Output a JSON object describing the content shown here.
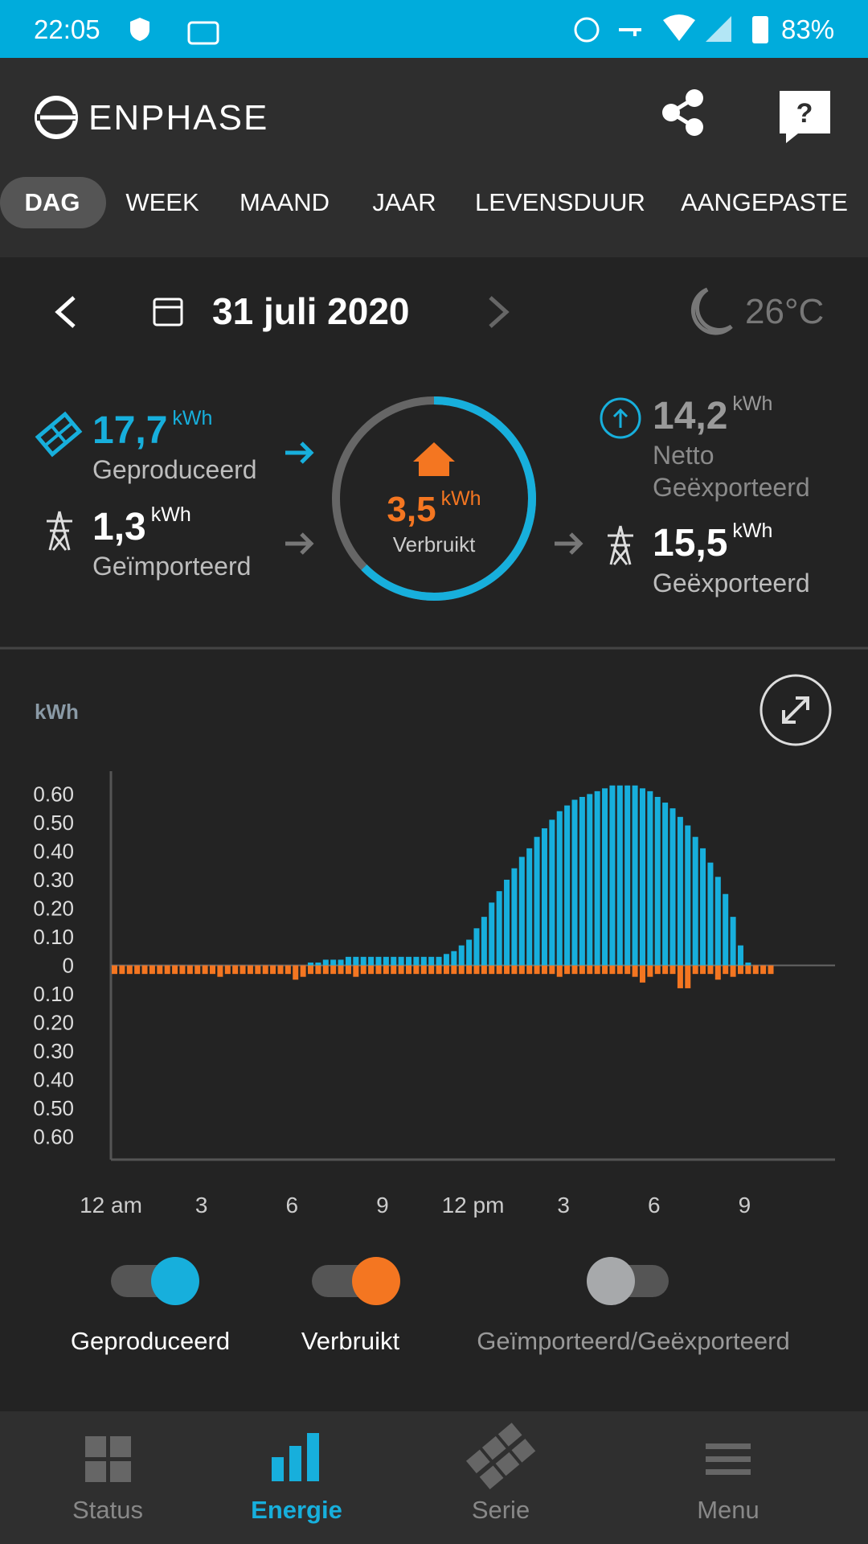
{
  "status_bar": {
    "time": "22:05",
    "battery": "83%"
  },
  "header": {
    "logo": "ENPHASE"
  },
  "tabs": {
    "items": [
      "DAG",
      "WEEK",
      "MAAND",
      "JAAR",
      "LEVENSDUUR",
      "AANGEPASTE"
    ],
    "active": 0
  },
  "date_bar": {
    "date": "31 juli 2020",
    "temperature": "26°C"
  },
  "summary": {
    "produced": {
      "value": "17,7",
      "unit": "kWh",
      "label": "Geproduceerd"
    },
    "imported": {
      "value": "1,3",
      "unit": "kWh",
      "label": "Geïmporteerd"
    },
    "consumed": {
      "value": "3,5",
      "unit": "kWh",
      "label": "Verbruikt"
    },
    "net_exported": {
      "value": "14,2",
      "unit": "kWh",
      "label": [
        "Netto",
        "Geëxporteerd"
      ]
    },
    "exported": {
      "value": "15,5",
      "unit": "kWh",
      "label": "Geëxporteerd"
    }
  },
  "chart_data": {
    "type": "bar",
    "y_label": "kWh",
    "grid": false,
    "x": [
      0,
      0.25,
      0.5,
      0.75,
      1,
      1.25,
      1.5,
      1.75,
      2,
      2.25,
      2.5,
      2.75,
      3,
      3.25,
      3.5,
      3.75,
      4,
      4.25,
      4.5,
      4.75,
      5,
      5.25,
      5.5,
      5.75,
      6,
      6.25,
      6.5,
      6.75,
      7,
      7.25,
      7.5,
      7.75,
      8,
      8.25,
      8.5,
      8.75,
      9,
      9.25,
      9.5,
      9.75,
      10,
      10.25,
      10.5,
      10.75,
      11,
      11.25,
      11.5,
      11.75,
      12,
      12.25,
      12.5,
      12.75,
      13,
      13.25,
      13.5,
      13.75,
      14,
      14.25,
      14.5,
      14.75,
      15,
      15.25,
      15.5,
      15.75,
      16,
      16.25,
      16.5,
      16.75,
      17,
      17.25,
      17.5,
      17.75,
      18,
      18.25,
      18.5,
      18.75,
      19,
      19.25,
      19.5,
      19.75,
      20,
      20.25,
      20.5,
      20.75,
      21,
      21.25,
      21.5,
      21.75,
      22,
      22.25,
      22.5,
      22.75,
      23,
      23.25,
      23.5,
      23.75
    ],
    "xlim": [
      0,
      24
    ],
    "xticks": [
      {
        "value": 0,
        "label": "12 am"
      },
      3,
      6,
      9,
      {
        "value": 12,
        "label": "12 pm"
      },
      {
        "value": 15,
        "label": "3"
      },
      {
        "value": 18,
        "label": "6"
      },
      {
        "value": 21,
        "label": "9"
      }
    ],
    "ylim": [
      -0.68,
      0.68
    ],
    "yticks": [
      {
        "value": 0.6,
        "label": "0.60"
      },
      {
        "value": 0.5,
        "label": "0.50"
      },
      {
        "value": 0.4,
        "label": "0.40"
      },
      {
        "value": 0.3,
        "label": "0.30"
      },
      {
        "value": 0.2,
        "label": "0.20"
      },
      {
        "value": 0.1,
        "label": "0.10"
      },
      0,
      {
        "value": -0.1,
        "label": "0.10"
      },
      {
        "value": -0.2,
        "label": "0.20"
      },
      {
        "value": -0.3,
        "label": "0.30"
      },
      {
        "value": -0.4,
        "label": "0.40"
      },
      {
        "value": -0.5,
        "label": "0.50"
      },
      {
        "value": -0.6,
        "label": "0.60"
      }
    ],
    "series": [
      {
        "name": "Geproduceerd",
        "color": "#17afdc",
        "values": [
          null,
          null,
          null,
          null,
          null,
          null,
          null,
          null,
          null,
          null,
          null,
          null,
          null,
          null,
          null,
          null,
          null,
          null,
          null,
          null,
          null,
          null,
          null,
          null,
          null,
          null,
          0.01,
          0.01,
          0.02,
          0.02,
          0.02,
          0.03,
          0.03,
          0.03,
          0.03,
          0.03,
          0.03,
          0.03,
          0.03,
          0.03,
          0.03,
          0.03,
          0.03,
          0.03,
          0.04,
          0.05,
          0.07,
          0.09,
          0.13,
          0.17,
          0.22,
          0.26,
          0.3,
          0.34,
          0.38,
          0.41,
          0.45,
          0.48,
          0.51,
          0.54,
          0.56,
          0.58,
          0.59,
          0.6,
          0.61,
          0.62,
          0.63,
          0.63,
          0.63,
          0.63,
          0.62,
          0.61,
          0.59,
          0.57,
          0.55,
          0.52,
          0.49,
          0.45,
          0.41,
          0.36,
          0.31,
          0.25,
          0.17,
          0.07,
          0.01,
          null,
          null,
          null,
          null,
          null,
          null,
          null,
          null,
          null,
          null,
          null
        ]
      },
      {
        "name": "Verbruikt",
        "color": "#f47621",
        "values": [
          -0.03,
          -0.03,
          -0.03,
          -0.03,
          -0.03,
          -0.03,
          -0.03,
          -0.03,
          -0.03,
          -0.03,
          -0.03,
          -0.03,
          -0.03,
          -0.03,
          -0.04,
          -0.03,
          -0.03,
          -0.03,
          -0.03,
          -0.03,
          -0.03,
          -0.03,
          -0.03,
          -0.03,
          -0.05,
          -0.04,
          -0.03,
          -0.03,
          -0.03,
          -0.03,
          -0.03,
          -0.03,
          -0.04,
          -0.03,
          -0.03,
          -0.03,
          -0.03,
          -0.03,
          -0.03,
          -0.03,
          -0.03,
          -0.03,
          -0.03,
          -0.03,
          -0.03,
          -0.03,
          -0.03,
          -0.03,
          -0.03,
          -0.03,
          -0.03,
          -0.03,
          -0.03,
          -0.03,
          -0.03,
          -0.03,
          -0.03,
          -0.03,
          -0.03,
          -0.04,
          -0.03,
          -0.03,
          -0.03,
          -0.03,
          -0.03,
          -0.03,
          -0.03,
          -0.03,
          -0.03,
          -0.04,
          -0.06,
          -0.04,
          -0.03,
          -0.03,
          -0.03,
          -0.08,
          -0.08,
          -0.03,
          -0.03,
          -0.03,
          -0.05,
          -0.03,
          -0.04,
          -0.03,
          -0.03,
          -0.03,
          -0.03,
          -0.03,
          null,
          null,
          null,
          null,
          null,
          null,
          null,
          null
        ]
      }
    ],
    "hidden_series": [
      {
        "name": "Geïmporteerd/Geëxporteerd",
        "color": "#a7a9ab"
      }
    ]
  },
  "bottom_nav": {
    "items": [
      "Status",
      "Energie",
      "Serie",
      "Menu"
    ],
    "active": 1
  }
}
